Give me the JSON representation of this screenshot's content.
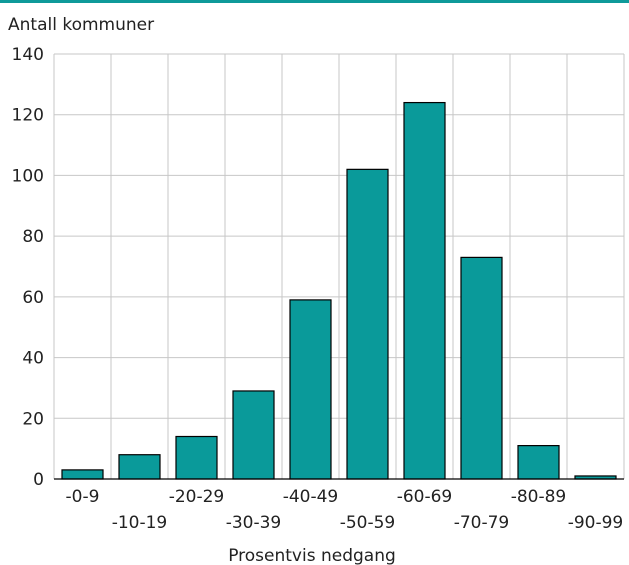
{
  "chart_data": {
    "type": "bar",
    "title": "",
    "ylabel": "Antall kommuner",
    "xlabel": "Prosentvis nedgang",
    "categories": [
      "-0-9",
      "-10-19",
      "-20-29",
      "-30-39",
      "-40-49",
      "-50-59",
      "-60-69",
      "-70-79",
      "-80-89",
      "-90-99"
    ],
    "values": [
      3,
      8,
      14,
      29,
      59,
      102,
      124,
      73,
      11,
      1
    ],
    "ylim": [
      0,
      140
    ],
    "yticks": [
      0,
      20,
      40,
      60,
      80,
      100,
      120,
      140
    ],
    "grid": true,
    "bar_color": "#0a9a9a"
  }
}
